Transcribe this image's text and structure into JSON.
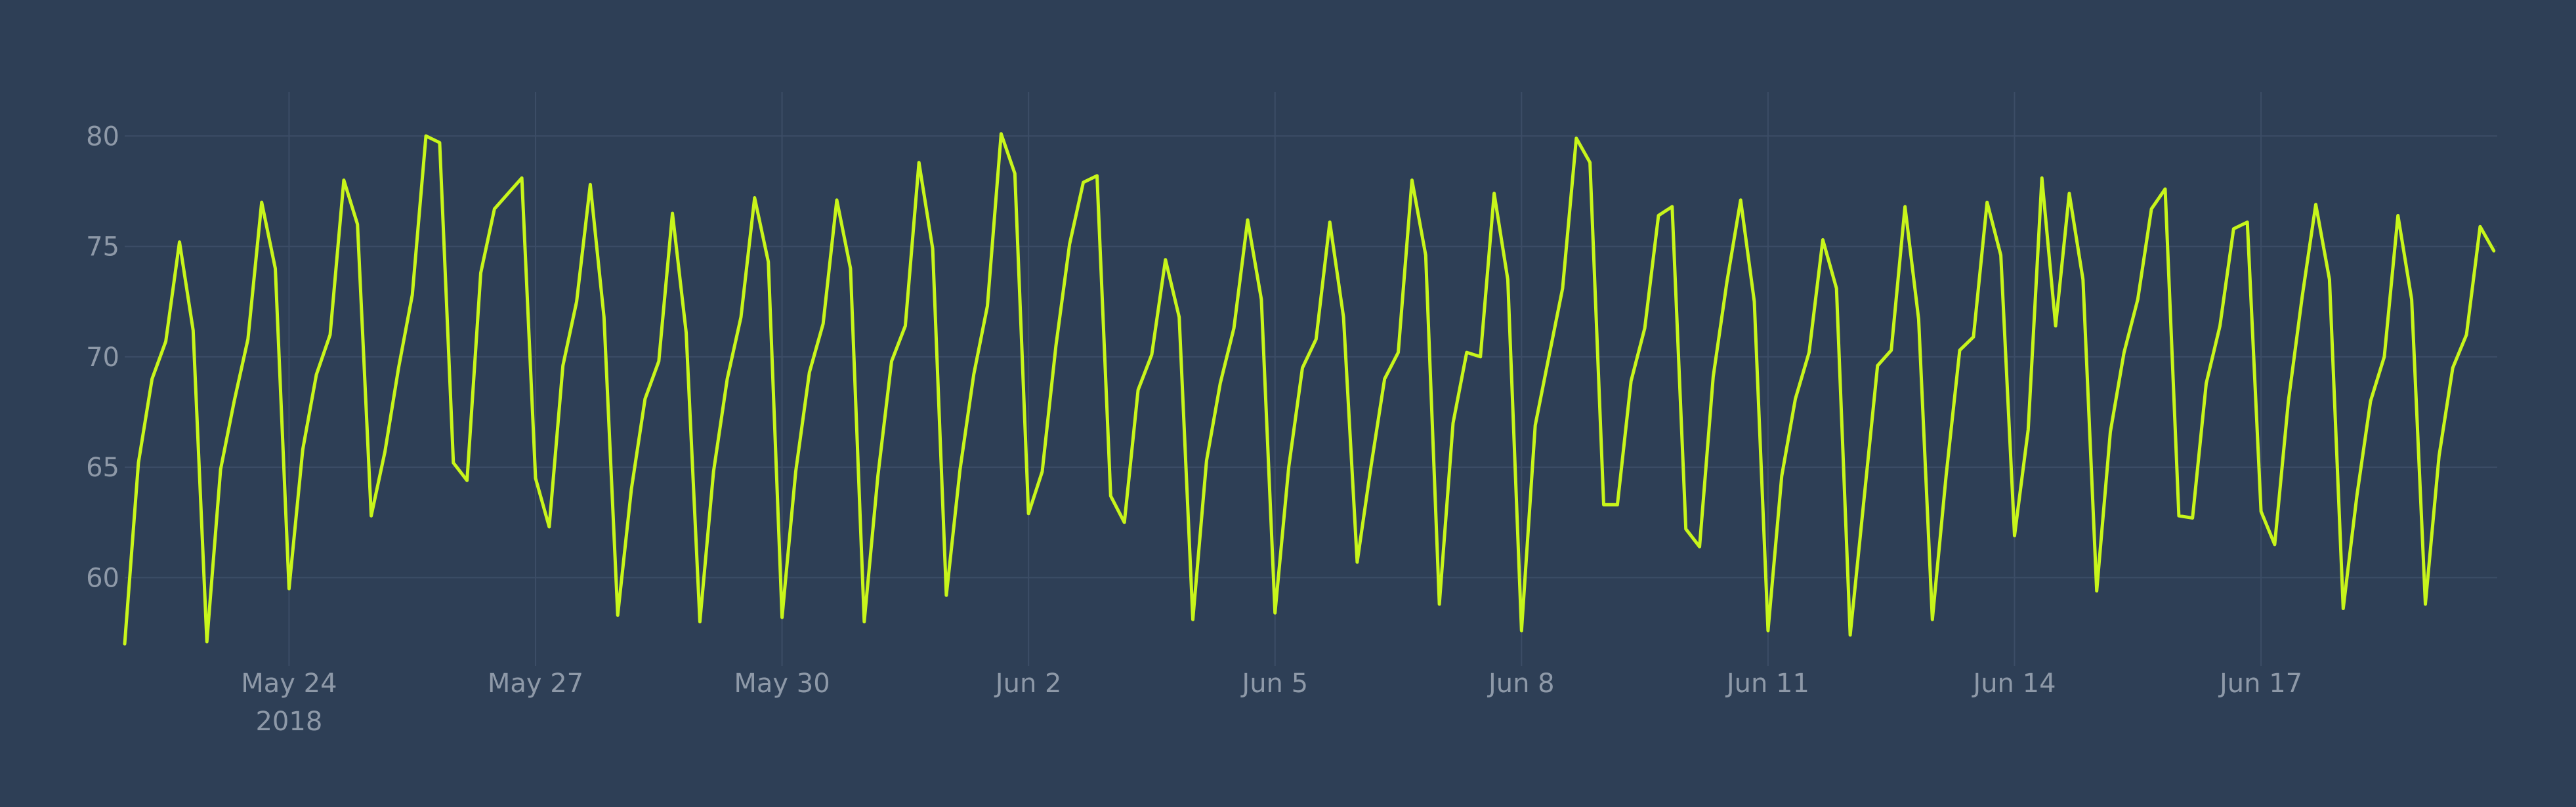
{
  "chart_data": {
    "type": "line",
    "title": "",
    "xlabel": "",
    "ylabel": "",
    "x_start": "2018-05-22",
    "x_end": "2018-06-19T21:00",
    "x_step_hours": 4,
    "xlim": [
      "2018-05-22",
      "2018-06-19T21:00"
    ],
    "ylim": [
      56,
      82
    ],
    "grid": true,
    "legend": "none",
    "colors": {
      "background": "#2e3f56",
      "grid": "#3c4d66",
      "line": "#c8f51b",
      "tick_text": "#8e99a8"
    },
    "x_ticks": [
      {
        "date": "2018-05-24",
        "label": "May 24",
        "sublabel": "2018"
      },
      {
        "date": "2018-05-27",
        "label": "May 27",
        "sublabel": ""
      },
      {
        "date": "2018-05-30",
        "label": "May 30",
        "sublabel": ""
      },
      {
        "date": "2018-06-02",
        "label": "Jun 2",
        "sublabel": ""
      },
      {
        "date": "2018-06-05",
        "label": "Jun 5",
        "sublabel": ""
      },
      {
        "date": "2018-06-08",
        "label": "Jun 8",
        "sublabel": ""
      },
      {
        "date": "2018-06-11",
        "label": "Jun 11",
        "sublabel": ""
      },
      {
        "date": "2018-06-14",
        "label": "Jun 14",
        "sublabel": ""
      },
      {
        "date": "2018-06-17",
        "label": "Jun 17",
        "sublabel": ""
      }
    ],
    "y_ticks": [
      {
        "value": 60,
        "label": "60"
      },
      {
        "value": 65,
        "label": "65"
      },
      {
        "value": 70,
        "label": "70"
      },
      {
        "value": 75,
        "label": "75"
      },
      {
        "value": 80,
        "label": "80"
      }
    ],
    "series": [
      {
        "values": [
          57.0,
          65.2,
          69.0,
          70.7,
          75.2,
          71.2,
          57.1,
          64.9,
          68.0,
          70.8,
          77.0,
          74.0,
          59.5,
          65.8,
          69.2,
          71.0,
          78.0,
          76.0,
          62.8,
          65.7,
          69.5,
          72.8,
          80.0,
          79.7,
          65.2,
          64.4,
          73.8,
          76.7,
          77.4,
          78.1,
          64.5,
          62.3,
          69.6,
          72.5,
          77.8,
          71.8,
          58.3,
          64.0,
          68.1,
          69.8,
          76.5,
          71.1,
          58.0,
          64.8,
          69.0,
          71.8,
          77.2,
          74.3,
          58.2,
          64.8,
          69.3,
          71.5,
          77.1,
          74.0,
          58.0,
          64.6,
          69.8,
          71.4,
          78.8,
          74.9,
          59.2,
          64.9,
          69.2,
          72.3,
          80.1,
          78.3,
          62.9,
          64.8,
          70.5,
          75.1,
          77.9,
          78.2,
          63.7,
          62.5,
          68.5,
          70.1,
          74.4,
          71.8,
          58.1,
          65.3,
          68.8,
          71.3,
          76.2,
          72.6,
          58.4,
          65.0,
          69.5,
          70.8,
          76.1,
          71.8,
          60.7,
          65.0,
          69.0,
          70.2,
          78.0,
          74.6,
          58.8,
          67.0,
          70.2,
          70.0,
          77.4,
          73.5,
          57.6,
          66.9,
          70.0,
          73.1,
          79.9,
          78.8,
          63.3,
          63.3,
          68.9,
          71.3,
          76.4,
          76.8,
          62.2,
          61.4,
          69.1,
          73.4,
          77.1,
          72.5,
          57.6,
          64.6,
          68.1,
          70.2,
          75.3,
          73.1,
          57.4,
          63.5,
          69.6,
          70.3,
          76.8,
          71.7,
          58.1,
          64.6,
          70.3,
          70.9,
          77.0,
          74.6,
          61.9,
          66.7,
          78.1,
          71.4,
          77.4,
          73.5,
          59.4,
          66.6,
          70.2,
          72.6,
          76.7,
          77.6,
          62.8,
          62.7,
          68.8,
          71.4,
          75.8,
          76.1,
          63.0,
          61.5,
          68.0,
          72.7,
          76.9,
          73.5,
          58.6,
          63.7,
          68.0,
          70.0,
          76.4,
          72.6,
          58.8,
          65.5,
          69.5,
          71.0,
          75.9,
          74.8
        ]
      }
    ]
  }
}
